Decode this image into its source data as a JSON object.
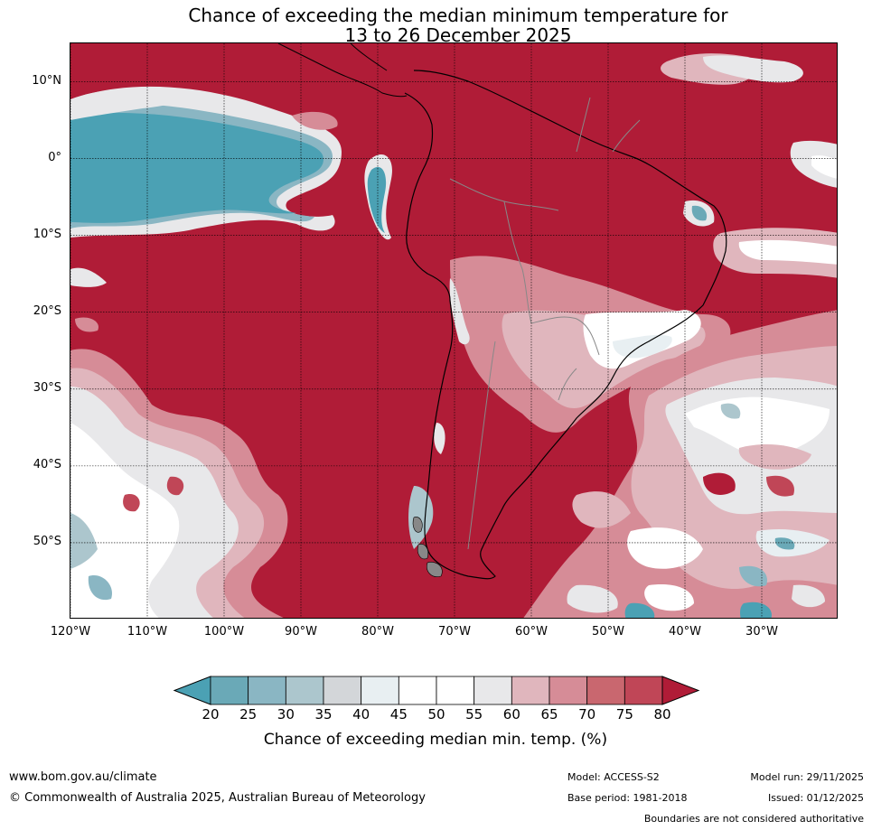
{
  "title": {
    "line1": "Chance of exceeding the median minimum temperature for",
    "line2": "13 to 26 December 2025"
  },
  "map": {
    "lat_labels": [
      "10°N",
      "0°",
      "10°S",
      "20°S",
      "30°S",
      "40°S",
      "50°S"
    ],
    "lat_values": [
      10,
      0,
      -10,
      -20,
      -30,
      -40,
      -50
    ],
    "lon_labels": [
      "120°W",
      "110°W",
      "100°W",
      "90°W",
      "80°W",
      "70°W",
      "60°W",
      "50°W",
      "40°W",
      "30°W"
    ],
    "lon_values": [
      -120,
      -110,
      -100,
      -90,
      -80,
      -70,
      -60,
      -50,
      -40,
      -30
    ],
    "lon_range": [
      -120,
      -20
    ],
    "lat_range": [
      -60,
      15
    ],
    "dominant_color": "#b01c37"
  },
  "colorbar": {
    "ticks": [
      "20",
      "25",
      "30",
      "35",
      "40",
      "45",
      "50",
      "55",
      "60",
      "65",
      "70",
      "75",
      "80"
    ],
    "colors": [
      "#4ba1b4",
      "#6aa9b7",
      "#8ab6c3",
      "#acc6cd",
      "#d3d6d9",
      "#e8eff2",
      "#ffffff",
      "#ffffff",
      "#e8e8ea",
      "#e0b6bd",
      "#d68c97",
      "#c9676f",
      "#c04657",
      "#b01c37"
    ],
    "label": "Chance of exceeding median min. temp. (%)"
  },
  "footer": {
    "website": "www.bom.gov.au/climate",
    "copyright": "© Commonwealth of Australia 2025, Australian Bureau of Meteorology",
    "model": "Model: ACCESS-S2",
    "base_period": "Base period: 1981-2018",
    "model_run": "Model run: 29/11/2025",
    "issued": "Issued: 01/12/2025",
    "disclaimer": "Boundaries are not considered authoritative"
  }
}
